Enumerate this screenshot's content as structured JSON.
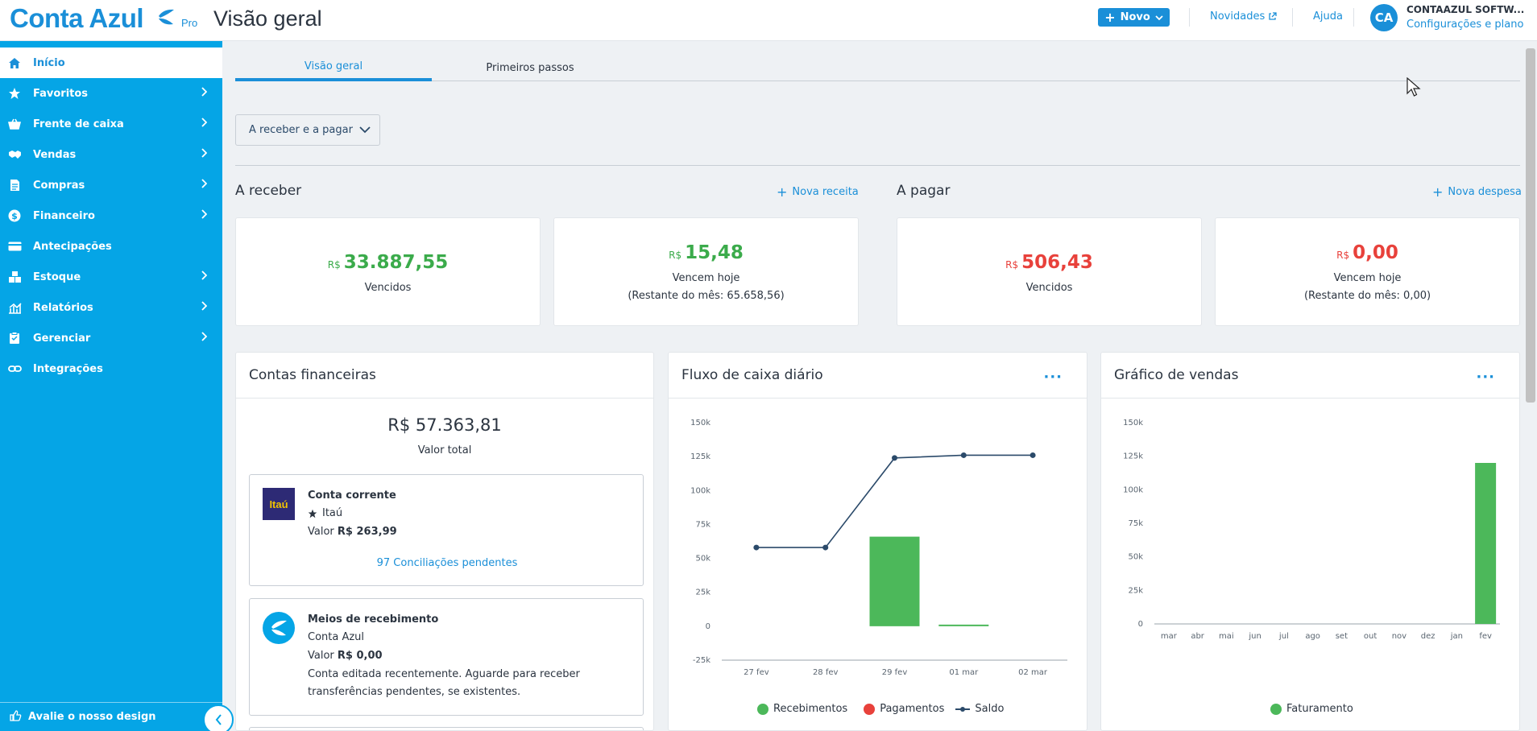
{
  "header": {
    "logo_text": "Conta Azul",
    "logo_pro": "Pro",
    "page_title": "Visão geral",
    "new_button": "Novo",
    "news_link": "Novidades",
    "help_link": "Ajuda",
    "avatar_initials": "CA",
    "company_name": "CONTAAZUL SOFTW...",
    "config_link": "Configurações e plano"
  },
  "sidebar": {
    "items": [
      {
        "label": "Início",
        "icon": "home-icon"
      },
      {
        "label": "Favoritos",
        "icon": "star-icon"
      },
      {
        "label": "Frente de caixa",
        "icon": "basket-icon"
      },
      {
        "label": "Vendas",
        "icon": "handshake-icon"
      },
      {
        "label": "Compras",
        "icon": "document-icon"
      },
      {
        "label": "Financeiro",
        "icon": "dollar-icon"
      },
      {
        "label": "Antecipações",
        "icon": "card-icon"
      },
      {
        "label": "Estoque",
        "icon": "boxes-icon"
      },
      {
        "label": "Relatórios",
        "icon": "chart-icon"
      },
      {
        "label": "Gerenciar",
        "icon": "clipboard-icon"
      },
      {
        "label": "Integrações",
        "icon": "link-icon"
      }
    ],
    "feedback": "Avalie o nosso design"
  },
  "tabs": [
    "Visão geral",
    "Primeiros passos"
  ],
  "filter_button": "A receber e a pagar",
  "receivable": {
    "title": "A receber",
    "action": "Nova receita",
    "overdue": {
      "currency": "R$",
      "amount": "33.887,55",
      "label": "Vencidos"
    },
    "today": {
      "currency": "R$",
      "amount": "15,48",
      "label": "Vencem hoje",
      "remaining": "(Restante do mês: 65.658,56)"
    }
  },
  "payable": {
    "title": "A pagar",
    "action": "Nova despesa",
    "overdue": {
      "currency": "R$",
      "amount": "506,43",
      "label": "Vencidos"
    },
    "today": {
      "currency": "R$",
      "amount": "0,00",
      "label": "Vencem hoje",
      "remaining": "(Restante do mês: 0,00)"
    }
  },
  "accounts": {
    "title": "Contas financeiras",
    "total": "R$ 57.363,81",
    "total_label": "Valor total",
    "list": [
      {
        "name": "Conta corrente",
        "logo": "Itaú",
        "bank": "Itaú",
        "value_label": "Valor",
        "value": "R$ 263,99",
        "pending": "97 Conciliações pendentes"
      },
      {
        "name": "Meios de recebimento",
        "bank": "Conta Azul",
        "value_label": "Valor",
        "value": "R$ 0,00",
        "note_1": "Conta editada recentemente. Aguarde para receber",
        "note_2": "transferências pendentes, se existentes."
      }
    ]
  },
  "cashflow_panel": {
    "title": "Fluxo de caixa diário",
    "menu": "···"
  },
  "sales_panel": {
    "title": "Gráfico de vendas",
    "menu": "···"
  },
  "colors": {
    "primary": "#1a8fd8",
    "sidebar": "#05a5e6",
    "green": "#3bab4b",
    "red": "#e8413b",
    "line": "#2b4a6a",
    "bar_green": "#4cb85a"
  },
  "chart_data": [
    {
      "type": "line",
      "title": "Fluxo de caixa diário",
      "categories": [
        "27 fev",
        "28 fev",
        "29 fev",
        "01 mar",
        "02 mar"
      ],
      "y_ticks": [
        "150k",
        "125k",
        "100k",
        "75k",
        "50k",
        "25k",
        "0",
        "-25k"
      ],
      "ylim": [
        -25000,
        150000
      ],
      "series": [
        {
          "name": "Recebimentos",
          "type": "bar",
          "color": "#4cb85a",
          "values": [
            0,
            0,
            66000,
            1000,
            0
          ]
        },
        {
          "name": "Pagamentos",
          "type": "bar",
          "color": "#e8413b",
          "values": [
            0,
            0,
            0,
            0,
            0
          ]
        },
        {
          "name": "Saldo",
          "type": "line",
          "color": "#2b4a6a",
          "values": [
            58000,
            58000,
            124000,
            126000,
            126000
          ]
        }
      ],
      "legend": "bottom"
    },
    {
      "type": "bar",
      "title": "Gráfico de vendas",
      "categories": [
        "mar",
        "abr",
        "mai",
        "jun",
        "jul",
        "ago",
        "set",
        "out",
        "nov",
        "dez",
        "jan",
        "fev"
      ],
      "y_ticks": [
        "150k",
        "125k",
        "100k",
        "75k",
        "50k",
        "25k",
        "0"
      ],
      "ylim": [
        0,
        150000
      ],
      "series": [
        {
          "name": "Faturamento",
          "color": "#4cb85a",
          "values": [
            0,
            0,
            0,
            0,
            0,
            0,
            0,
            0,
            0,
            0,
            0,
            120000
          ]
        }
      ],
      "legend": "bottom"
    }
  ]
}
